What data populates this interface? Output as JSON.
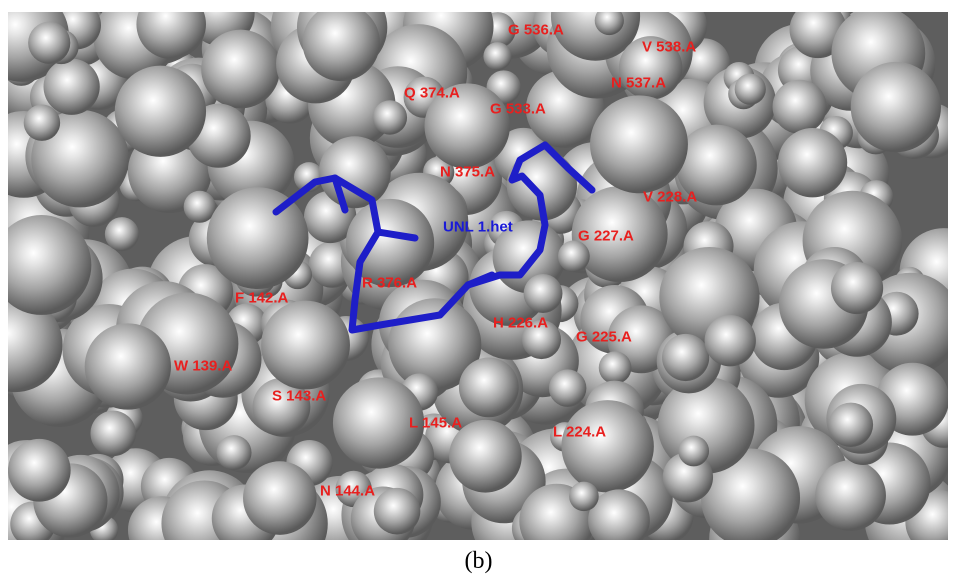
{
  "labels": [
    "G 536.A",
    "V 538.A",
    "N 537.A",
    "Q 374.A",
    "G 533.A",
    "N 375.A",
    "V 228.A",
    "G 227.A",
    "R 376.A",
    "F 142.A",
    "H 226.A",
    "G 225.A",
    "W 139.A",
    "S 143.A",
    "L 145.A",
    "L 224.A",
    "N 144.A"
  ],
  "ligand_label": "UNL 1.het",
  "caption": "(b)"
}
